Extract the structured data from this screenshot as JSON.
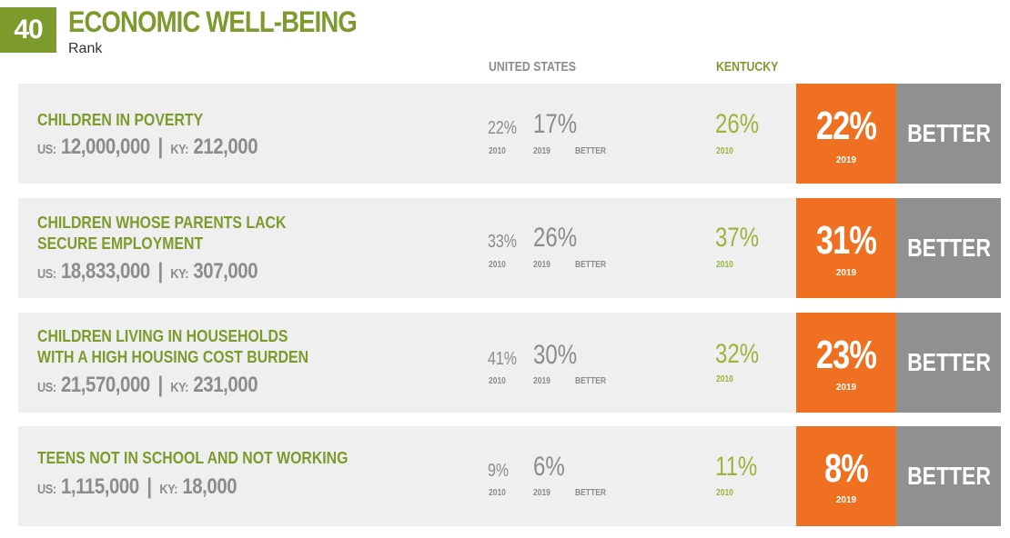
{
  "header": {
    "rank": "40",
    "title": "ECONOMIC WELL-BEING",
    "subtitle": "Rank"
  },
  "columns": {
    "us": "UNITED STATES",
    "ky": "KENTUCKY"
  },
  "labels": {
    "y2010": "2010",
    "y2019": "2019",
    "better": "BETTER",
    "us_prefix": "US:",
    "ky_prefix": "KY:",
    "sep": "|"
  },
  "rows": [
    {
      "label_line1": "CHILDREN IN POVERTY",
      "label_line2": "",
      "us_count": "12,000,000",
      "ky_count": "212,000",
      "us_2010": "22%",
      "us_2019": "17%",
      "us_trend": "BETTER",
      "ky_2010": "26%",
      "ky_2019": "22%",
      "ky_trend": "BETTER"
    },
    {
      "label_line1": "CHILDREN WHOSE PARENTS LACK",
      "label_line2": "SECURE EMPLOYMENT",
      "us_count": "18,833,000",
      "ky_count": "307,000",
      "us_2010": "33%",
      "us_2019": "26%",
      "us_trend": "BETTER",
      "ky_2010": "37%",
      "ky_2019": "31%",
      "ky_trend": "BETTER"
    },
    {
      "label_line1": "CHILDREN LIVING IN HOUSEHOLDS",
      "label_line2": "WITH A HIGH HOUSING COST BURDEN",
      "us_count": "21,570,000",
      "ky_count": "231,000",
      "us_2010": "41%",
      "us_2019": "30%",
      "us_trend": "BETTER",
      "ky_2010": "32%",
      "ky_2019": "23%",
      "ky_trend": "BETTER"
    },
    {
      "label_line1": "TEENS NOT IN SCHOOL AND NOT WORKING",
      "label_line2": "",
      "us_count": "1,115,000",
      "ky_count": "18,000",
      "us_2010": "9%",
      "us_2019": "6%",
      "us_trend": "BETTER",
      "ky_2010": "11%",
      "ky_2019": "8%",
      "ky_trend": "BETTER"
    }
  ],
  "colors": {
    "green": "#7d9a2d",
    "light_green": "#9ab53e",
    "orange": "#f07021",
    "grey_box": "#8f9092",
    "row_bg": "#efefef",
    "text_grey": "#8c8c8c"
  }
}
